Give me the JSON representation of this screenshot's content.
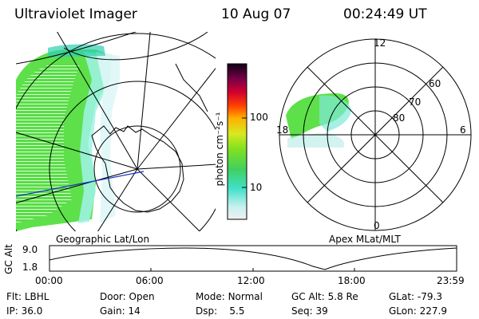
{
  "header": {
    "instrument": "Ultraviolet Imager",
    "date": "10 Aug 07",
    "time": "00:24:49 UT"
  },
  "colorbar": {
    "label": "photon cm⁻²s⁻¹",
    "ticks": [
      "100",
      "10"
    ]
  },
  "geo_panel": {
    "label": "Geographic Lat/Lon"
  },
  "polar_panel": {
    "label": "Apex MLat/MLT",
    "mlt_labels": [
      "12",
      "18",
      "6",
      "0"
    ],
    "lat_labels": [
      "60",
      "70",
      "80"
    ]
  },
  "alt_plot": {
    "ylabel": "GC Alt",
    "y_ticks": [
      "9.0",
      "1.8"
    ],
    "x_ticks": [
      "00:00",
      "06:00",
      "12:00",
      "18:00",
      "23:59"
    ]
  },
  "footer": {
    "row1": [
      {
        "key": "Flt:",
        "val": "LBHL"
      },
      {
        "key": "Door:",
        "val": "Open"
      },
      {
        "key": "Mode:",
        "val": "Normal"
      },
      {
        "key": "GC Alt:",
        "val": "5.8 Re"
      },
      {
        "key": "GLat:",
        "val": "-79.3"
      }
    ],
    "row2": [
      {
        "key": "IP:",
        "val": "36.0"
      },
      {
        "key": "Gain:",
        "val": "14"
      },
      {
        "key": "Dsp:",
        "val": "5.5"
      },
      {
        "key": "Seq:",
        "val": "39"
      },
      {
        "key": "GLon:",
        "val": "227.9"
      }
    ]
  }
}
